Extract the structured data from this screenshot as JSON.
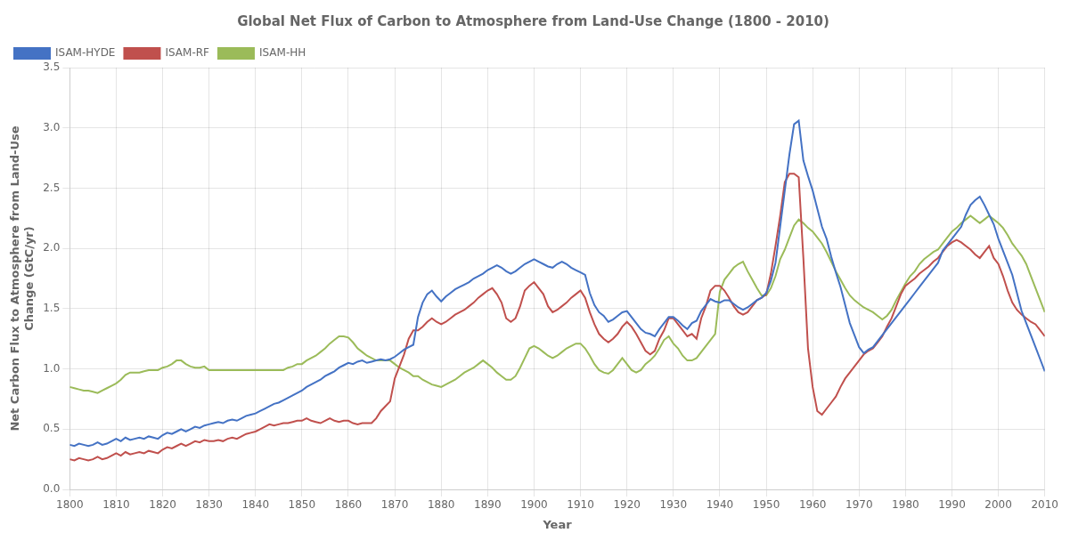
{
  "chart_data": {
    "type": "line",
    "title": "Global Net Flux of Carbon to Atmosphere from Land-Use Change (1800 - 2010)",
    "xlabel": "Year",
    "ylabel": "Net Carbon Flux to Atmosphere from Land-Use\nChange (GtC/yr)",
    "xlim": [
      1800,
      2010
    ],
    "xticks": [
      1800,
      1810,
      1820,
      1830,
      1840,
      1850,
      1860,
      1870,
      1880,
      1890,
      1900,
      1910,
      1920,
      1930,
      1940,
      1950,
      1960,
      1970,
      1980,
      1990,
      2000,
      2010
    ],
    "ylim": [
      0,
      3.5
    ],
    "yticks": [
      {
        "value": 0,
        "label": "0.0"
      },
      0.5,
      {
        "value": 1,
        "label": "1.0"
      },
      1.5,
      {
        "value": 2,
        "label": "2.0"
      },
      2.5,
      {
        "value": 3,
        "label": "3.0"
      },
      3.5
    ],
    "grid": true,
    "legend": "upper left",
    "x": [
      1800,
      1801,
      1802,
      1803,
      1804,
      1805,
      1806,
      1807,
      1808,
      1809,
      1810,
      1811,
      1812,
      1813,
      1814,
      1815,
      1816,
      1817,
      1818,
      1819,
      1820,
      1821,
      1822,
      1823,
      1824,
      1825,
      1826,
      1827,
      1828,
      1829,
      1830,
      1831,
      1832,
      1833,
      1834,
      1835,
      1836,
      1837,
      1838,
      1839,
      1840,
      1841,
      1842,
      1843,
      1844,
      1845,
      1846,
      1847,
      1848,
      1849,
      1850,
      1851,
      1852,
      1853,
      1854,
      1855,
      1856,
      1857,
      1858,
      1859,
      1860,
      1861,
      1862,
      1863,
      1864,
      1865,
      1866,
      1867,
      1868,
      1869,
      1870,
      1871,
      1872,
      1873,
      1874,
      1875,
      1876,
      1877,
      1878,
      1879,
      1880,
      1881,
      1882,
      1883,
      1884,
      1885,
      1886,
      1887,
      1888,
      1889,
      1890,
      1891,
      1892,
      1893,
      1894,
      1895,
      1896,
      1897,
      1898,
      1899,
      1900,
      1901,
      1902,
      1903,
      1904,
      1905,
      1906,
      1907,
      1908,
      1909,
      1910,
      1911,
      1912,
      1913,
      1914,
      1915,
      1916,
      1917,
      1918,
      1919,
      1920,
      1921,
      1922,
      1923,
      1924,
      1925,
      1926,
      1927,
      1928,
      1929,
      1930,
      1931,
      1932,
      1933,
      1934,
      1935,
      1936,
      1937,
      1938,
      1939,
      1940,
      1941,
      1942,
      1943,
      1944,
      1945,
      1946,
      1947,
      1948,
      1949,
      1950,
      1951,
      1952,
      1953,
      1954,
      1955,
      1956,
      1957,
      1958,
      1959,
      1960,
      1961,
      1962,
      1963,
      1964,
      1965,
      1966,
      1967,
      1968,
      1969,
      1970,
      1971,
      1972,
      1973,
      1974,
      1975,
      1976,
      1977,
      1978,
      1979,
      1980,
      1981,
      1982,
      1983,
      1984,
      1985,
      1986,
      1987,
      1988,
      1989,
      1990,
      1991,
      1992,
      1993,
      1994,
      1995,
      1996,
      1997,
      1998,
      1999,
      2000,
      2001,
      2002,
      2003,
      2004,
      2005,
      2006,
      2007,
      2008,
      2009,
      2010
    ],
    "series": [
      {
        "name": "ISAM-HYDE",
        "color": "#4472C4",
        "values": [
          0.37,
          0.36,
          0.38,
          0.37,
          0.36,
          0.37,
          0.39,
          0.37,
          0.38,
          0.4,
          0.42,
          0.4,
          0.43,
          0.41,
          0.42,
          0.43,
          0.42,
          0.44,
          0.43,
          0.42,
          0.45,
          0.47,
          0.46,
          0.48,
          0.5,
          0.48,
          0.5,
          0.52,
          0.51,
          0.53,
          0.54,
          0.55,
          0.56,
          0.55,
          0.57,
          0.58,
          0.57,
          0.59,
          0.61,
          0.62,
          0.63,
          0.65,
          0.67,
          0.69,
          0.71,
          0.72,
          0.74,
          0.76,
          0.78,
          0.8,
          0.82,
          0.85,
          0.87,
          0.89,
          0.91,
          0.94,
          0.96,
          0.98,
          1.01,
          1.03,
          1.05,
          1.04,
          1.06,
          1.07,
          1.05,
          1.06,
          1.07,
          1.08,
          1.07,
          1.08,
          1.1,
          1.13,
          1.16,
          1.18,
          1.2,
          1.43,
          1.55,
          1.62,
          1.65,
          1.6,
          1.56,
          1.6,
          1.63,
          1.66,
          1.68,
          1.7,
          1.72,
          1.75,
          1.77,
          1.79,
          1.82,
          1.84,
          1.86,
          1.84,
          1.81,
          1.79,
          1.81,
          1.84,
          1.87,
          1.89,
          1.91,
          1.89,
          1.87,
          1.85,
          1.84,
          1.87,
          1.89,
          1.87,
          1.84,
          1.82,
          1.8,
          1.78,
          1.63,
          1.53,
          1.47,
          1.44,
          1.39,
          1.41,
          1.44,
          1.47,
          1.48,
          1.43,
          1.38,
          1.33,
          1.3,
          1.29,
          1.27,
          1.33,
          1.38,
          1.43,
          1.43,
          1.4,
          1.36,
          1.33,
          1.38,
          1.4,
          1.48,
          1.53,
          1.58,
          1.56,
          1.55,
          1.57,
          1.57,
          1.54,
          1.51,
          1.49,
          1.51,
          1.54,
          1.57,
          1.59,
          1.63,
          1.73,
          1.88,
          2.18,
          2.48,
          2.78,
          3.03,
          3.06,
          2.73,
          2.6,
          2.48,
          2.33,
          2.18,
          2.08,
          1.93,
          1.8,
          1.68,
          1.53,
          1.38,
          1.28,
          1.18,
          1.13,
          1.16,
          1.18,
          1.23,
          1.28,
          1.33,
          1.38,
          1.43,
          1.48,
          1.53,
          1.58,
          1.63,
          1.68,
          1.73,
          1.78,
          1.83,
          1.88,
          1.98,
          2.03,
          2.08,
          2.13,
          2.18,
          2.28,
          2.36,
          2.4,
          2.43,
          2.36,
          2.28,
          2.2,
          2.08,
          1.98,
          1.88,
          1.78,
          1.63,
          1.48,
          1.38,
          1.28,
          1.18,
          1.08,
          0.98
        ]
      },
      {
        "name": "ISAM-RF",
        "color": "#C0504D",
        "values": [
          0.25,
          0.24,
          0.26,
          0.25,
          0.24,
          0.25,
          0.27,
          0.25,
          0.26,
          0.28,
          0.3,
          0.28,
          0.31,
          0.29,
          0.3,
          0.31,
          0.3,
          0.32,
          0.31,
          0.3,
          0.33,
          0.35,
          0.34,
          0.36,
          0.38,
          0.36,
          0.38,
          0.4,
          0.39,
          0.41,
          0.4,
          0.4,
          0.41,
          0.4,
          0.42,
          0.43,
          0.42,
          0.44,
          0.46,
          0.47,
          0.48,
          0.5,
          0.52,
          0.54,
          0.53,
          0.54,
          0.55,
          0.55,
          0.56,
          0.57,
          0.57,
          0.59,
          0.57,
          0.56,
          0.55,
          0.57,
          0.59,
          0.57,
          0.56,
          0.57,
          0.57,
          0.55,
          0.54,
          0.55,
          0.55,
          0.55,
          0.59,
          0.65,
          0.69,
          0.73,
          0.92,
          1.02,
          1.12,
          1.25,
          1.32,
          1.32,
          1.35,
          1.39,
          1.42,
          1.39,
          1.37,
          1.39,
          1.42,
          1.45,
          1.47,
          1.49,
          1.52,
          1.55,
          1.59,
          1.62,
          1.65,
          1.67,
          1.62,
          1.55,
          1.42,
          1.39,
          1.42,
          1.52,
          1.65,
          1.69,
          1.72,
          1.67,
          1.62,
          1.52,
          1.47,
          1.49,
          1.52,
          1.55,
          1.59,
          1.62,
          1.65,
          1.59,
          1.47,
          1.37,
          1.29,
          1.25,
          1.22,
          1.25,
          1.29,
          1.35,
          1.39,
          1.35,
          1.29,
          1.22,
          1.15,
          1.12,
          1.15,
          1.25,
          1.32,
          1.42,
          1.42,
          1.37,
          1.32,
          1.27,
          1.29,
          1.25,
          1.42,
          1.52,
          1.65,
          1.69,
          1.69,
          1.65,
          1.59,
          1.52,
          1.47,
          1.45,
          1.47,
          1.52,
          1.57,
          1.59,
          1.62,
          1.79,
          2.02,
          2.27,
          2.55,
          2.62,
          2.62,
          2.59,
          1.92,
          1.17,
          0.85,
          0.65,
          0.62,
          0.67,
          0.72,
          0.77,
          0.85,
          0.92,
          0.97,
          1.02,
          1.07,
          1.12,
          1.15,
          1.17,
          1.22,
          1.27,
          1.35,
          1.42,
          1.52,
          1.62,
          1.69,
          1.72,
          1.75,
          1.79,
          1.82,
          1.85,
          1.89,
          1.92,
          1.97,
          2.02,
          2.05,
          2.07,
          2.05,
          2.02,
          1.99,
          1.95,
          1.92,
          1.97,
          2.02,
          1.92,
          1.87,
          1.77,
          1.65,
          1.55,
          1.49,
          1.45,
          1.42,
          1.39,
          1.37,
          1.32,
          1.27
        ]
      },
      {
        "name": "ISAM-HH",
        "color": "#9BBB59",
        "values": [
          0.85,
          0.84,
          0.83,
          0.82,
          0.82,
          0.81,
          0.8,
          0.82,
          0.84,
          0.86,
          0.88,
          0.91,
          0.95,
          0.97,
          0.97,
          0.97,
          0.98,
          0.99,
          0.99,
          0.99,
          1.01,
          1.02,
          1.04,
          1.07,
          1.07,
          1.04,
          1.02,
          1.01,
          1.01,
          1.02,
          0.99,
          0.99,
          0.99,
          0.99,
          0.99,
          0.99,
          0.99,
          0.99,
          0.99,
          0.99,
          0.99,
          0.99,
          0.99,
          0.99,
          0.99,
          0.99,
          0.99,
          1.01,
          1.02,
          1.04,
          1.04,
          1.07,
          1.09,
          1.11,
          1.14,
          1.17,
          1.21,
          1.24,
          1.27,
          1.27,
          1.26,
          1.22,
          1.17,
          1.14,
          1.11,
          1.09,
          1.07,
          1.07,
          1.07,
          1.07,
          1.04,
          1.01,
          0.99,
          0.97,
          0.94,
          0.94,
          0.91,
          0.89,
          0.87,
          0.86,
          0.85,
          0.87,
          0.89,
          0.91,
          0.94,
          0.97,
          0.99,
          1.01,
          1.04,
          1.07,
          1.04,
          1.01,
          0.97,
          0.94,
          0.91,
          0.91,
          0.94,
          1.01,
          1.09,
          1.17,
          1.19,
          1.17,
          1.14,
          1.11,
          1.09,
          1.11,
          1.14,
          1.17,
          1.19,
          1.21,
          1.21,
          1.17,
          1.11,
          1.04,
          0.99,
          0.97,
          0.96,
          0.99,
          1.04,
          1.09,
          1.04,
          0.99,
          0.97,
          0.99,
          1.04,
          1.07,
          1.11,
          1.17,
          1.24,
          1.27,
          1.21,
          1.17,
          1.11,
          1.07,
          1.07,
          1.09,
          1.14,
          1.19,
          1.24,
          1.29,
          1.64,
          1.74,
          1.79,
          1.84,
          1.87,
          1.89,
          1.81,
          1.74,
          1.67,
          1.61,
          1.61,
          1.67,
          1.77,
          1.91,
          1.99,
          2.09,
          2.19,
          2.24,
          2.21,
          2.17,
          2.14,
          2.09,
          2.04,
          1.97,
          1.89,
          1.81,
          1.74,
          1.67,
          1.61,
          1.57,
          1.54,
          1.51,
          1.49,
          1.47,
          1.44,
          1.41,
          1.44,
          1.49,
          1.57,
          1.64,
          1.71,
          1.77,
          1.81,
          1.87,
          1.91,
          1.94,
          1.97,
          1.99,
          2.04,
          2.09,
          2.14,
          2.17,
          2.21,
          2.24,
          2.27,
          2.24,
          2.21,
          2.24,
          2.27,
          2.24,
          2.21,
          2.17,
          2.11,
          2.04,
          1.99,
          1.94,
          1.87,
          1.77,
          1.67,
          1.57,
          1.47
        ]
      }
    ]
  }
}
